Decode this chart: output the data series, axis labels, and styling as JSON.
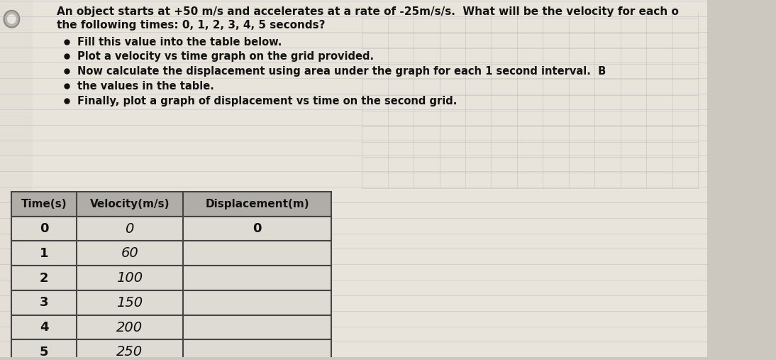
{
  "title_line1": "An object starts at +50 m/s and accelerates at a rate of -25m/s/s.  What will be the velocity for each o",
  "title_line2": "the following times: 0, 1, 2, 3, 4, 5 seconds?",
  "bullets": [
    "Fill this value into the table below.",
    "Plot a velocity vs time graph on the grid provided.",
    "Now calculate the displacement using area under the graph for each 1 second interval.  B",
    "the values in the table.",
    "Finally, plot a graph of displacement vs time on the second grid."
  ],
  "col_headers": [
    "Time(s)",
    "Velocity(m/s)",
    "Displacement(m)"
  ],
  "time_vals": [
    "0",
    "1",
    "2",
    "3",
    "4",
    "5"
  ],
  "velocity_vals": [
    "0",
    "60",
    "100",
    "150",
    "200",
    "250"
  ],
  "displacement_vals": [
    "0",
    "",
    "",
    "",
    "",
    ""
  ],
  "bg_color": "#ccc8c0",
  "paper_color": "#e8e4dc",
  "table_header_bg": "#b0aca8",
  "table_row_bg": "#dedad4",
  "text_color": "#111111",
  "notebook_line_color": "#aab0c0",
  "grid_color": "#c0bdb8",
  "title_fontsize": 11,
  "bullet_fontsize": 10.5,
  "header_fontsize": 11,
  "data_fontsize": 12
}
